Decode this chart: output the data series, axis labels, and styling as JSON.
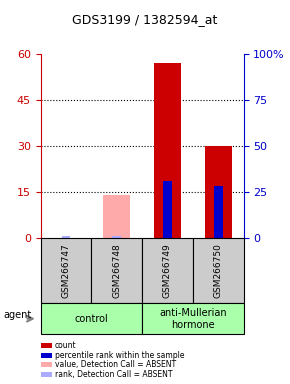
{
  "title": "GDS3199 / 1382594_at",
  "samples": [
    "GSM266747",
    "GSM266748",
    "GSM266749",
    "GSM266750"
  ],
  "groups": [
    {
      "name": "control",
      "color": "#aaffaa",
      "samples": [
        0,
        1
      ]
    },
    {
      "name": "anti-Mullerian\nhormone",
      "color": "#aaffaa",
      "samples": [
        2,
        3
      ]
    }
  ],
  "red_bars": [
    0,
    0,
    57,
    30
  ],
  "blue_bars": [
    1,
    0,
    31,
    28
  ],
  "pink_bars": [
    0,
    14,
    0,
    0
  ],
  "lightblue_bars": [
    1,
    1,
    0,
    0
  ],
  "absent_red": [
    false,
    true,
    false,
    false
  ],
  "absent_blue": [
    true,
    true,
    false,
    false
  ],
  "ylim_left": [
    0,
    60
  ],
  "ylim_right": [
    0,
    100
  ],
  "yticks_left": [
    0,
    15,
    30,
    45,
    60
  ],
  "yticks_right": [
    0,
    25,
    50,
    75,
    100
  ],
  "left_color": "#cc0000",
  "right_color": "#0000cc",
  "bar_width": 0.35,
  "bg_plot": "#ffffff",
  "bg_sample_row": "#cccccc",
  "bg_group_row": "#aaffaa",
  "legend_items": [
    {
      "label": "count",
      "color": "#cc0000"
    },
    {
      "label": "percentile rank within the sample",
      "color": "#0000cc"
    },
    {
      "label": "value, Detection Call = ABSENT",
      "color": "#ffaaaa"
    },
    {
      "label": "rank, Detection Call = ABSENT",
      "color": "#aaaaff"
    }
  ]
}
